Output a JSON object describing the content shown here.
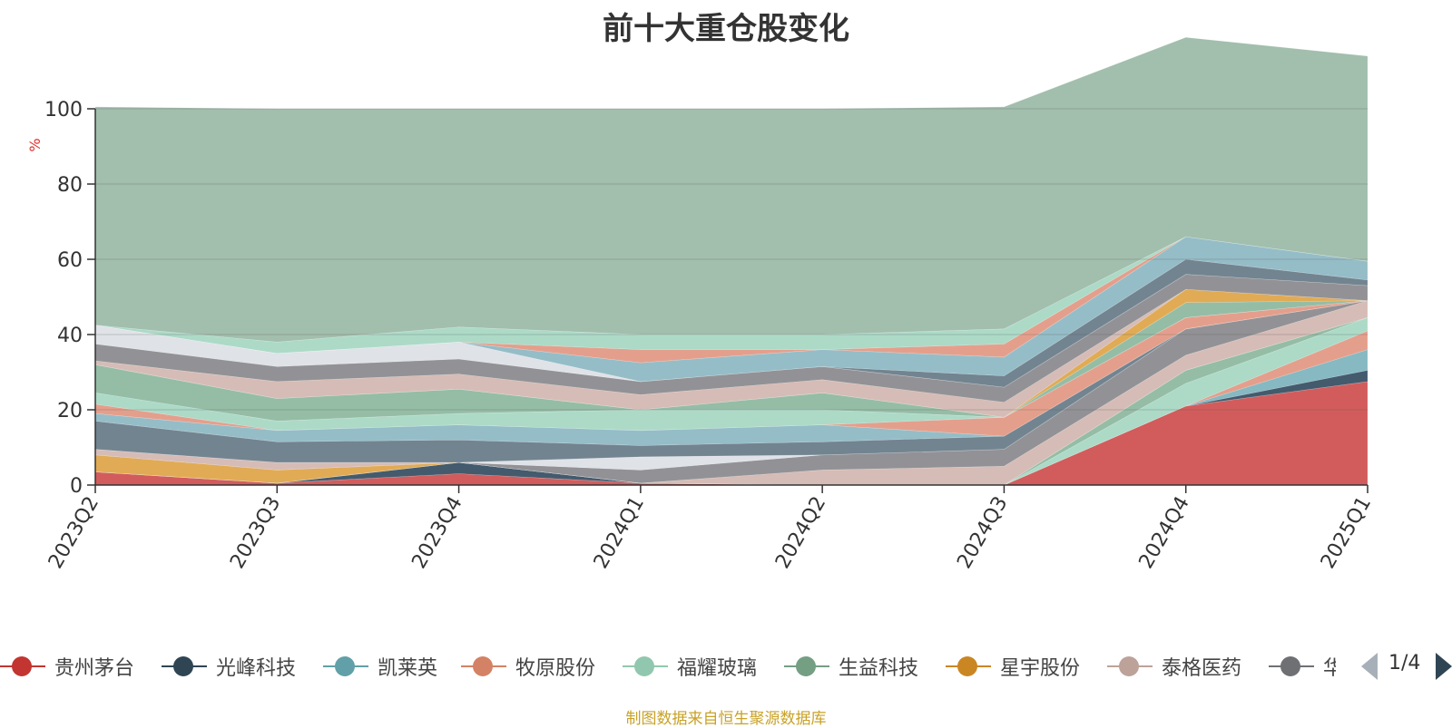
{
  "chart_data": {
    "type": "area",
    "title": "前十大重仓股变化",
    "ylabel": "%",
    "ylim": [
      0,
      100
    ],
    "yticks": [
      0,
      20,
      40,
      60,
      80,
      100
    ],
    "grid": true,
    "categories": [
      "2023Q2",
      "2023Q3",
      "2023Q4",
      "2024Q1",
      "2024Q2",
      "2024Q3",
      "2024Q4",
      "2025Q1"
    ],
    "series": [
      {
        "name": "贵州茅台",
        "color": "#d05353",
        "values": [
          3.5,
          0.5,
          3.0,
          0.5,
          0,
          0,
          21,
          27.5
        ]
      },
      {
        "name": "光峰科技",
        "color": "#3a5266",
        "values": [
          0,
          0,
          3.0,
          0,
          0,
          0,
          0,
          3.0
        ]
      },
      {
        "name": "凯莱英",
        "color": "#7fb5bf",
        "values": [
          0,
          0,
          0,
          0,
          0,
          0,
          0,
          5.5
        ]
      },
      {
        "name": "牧原股份",
        "color": "#e39a86",
        "values": [
          0,
          0,
          0,
          0,
          0,
          0,
          0,
          5.0
        ]
      },
      {
        "name": "福耀玻璃",
        "color": "#a8d8c4",
        "values": [
          0,
          0,
          0,
          0,
          0,
          0,
          6.0,
          3.5
        ]
      },
      {
        "name": "生益科技",
        "color": "#8fb9a1",
        "values": [
          0,
          0,
          0,
          0,
          0,
          0,
          3.5,
          0
        ]
      },
      {
        "name": "星宇股份",
        "color": "#dfa64c",
        "values": [
          4.5,
          3.5,
          0,
          0,
          0,
          0,
          0,
          0
        ]
      },
      {
        "name": "泰格医药",
        "color": "#d4b8b2",
        "values": [
          1.5,
          2.0,
          0,
          0,
          4.0,
          5.0,
          4.0,
          4.5
        ]
      },
      {
        "name": "华",
        "color": "#8c8c90",
        "values": [
          0,
          0,
          0,
          3.5,
          4.0,
          4.5,
          7.0,
          0
        ]
      },
      {
        "name": "",
        "color": "#dde0e6",
        "values": [
          0,
          0,
          0,
          3.5,
          0,
          0,
          0,
          0
        ]
      },
      {
        "name": "",
        "color": "#6a7d8a",
        "values": [
          7.5,
          5.5,
          6.0,
          3.0,
          3.5,
          3.5,
          0,
          0
        ]
      },
      {
        "name": "",
        "color": "#8fb9c4",
        "values": [
          2.0,
          3.0,
          4.0,
          4.0,
          4.5,
          0,
          0,
          0
        ]
      },
      {
        "name": "",
        "color": "#e39a86",
        "values": [
          2.5,
          0,
          0,
          0,
          0,
          5.0,
          3.0,
          0
        ]
      },
      {
        "name": "",
        "color": "#a8d8c4",
        "values": [
          3.0,
          2.5,
          3.0,
          5.5,
          4.0,
          0,
          0,
          0
        ]
      },
      {
        "name": "",
        "color": "#8fb9a1",
        "values": [
          7.5,
          6.0,
          6.5,
          0,
          4.5,
          0,
          4.0,
          0
        ]
      },
      {
        "name": "",
        "color": "#dfa64c",
        "values": [
          0,
          0,
          0,
          0,
          0,
          0,
          3.5,
          0
        ]
      },
      {
        "name": "",
        "color": "#d4b8b2",
        "values": [
          1.0,
          4.5,
          4.0,
          4.0,
          3.5,
          4.0,
          0,
          0
        ]
      },
      {
        "name": "",
        "color": "#8c8c90",
        "values": [
          4.5,
          4.0,
          4.0,
          3.5,
          3.5,
          4.0,
          4.0,
          4.0
        ]
      },
      {
        "name": "",
        "color": "#dde0e6",
        "values": [
          5.0,
          3.5,
          4.5,
          0,
          0,
          0,
          0,
          0
        ]
      },
      {
        "name": "",
        "color": "#6a7d8a",
        "values": [
          0,
          0,
          0,
          0,
          0,
          3.0,
          4.0,
          1.5
        ]
      },
      {
        "name": "",
        "color": "#8fb9c4",
        "values": [
          0,
          0,
          0,
          5.0,
          4.5,
          5.0,
          6.0,
          5.0
        ]
      },
      {
        "name": "",
        "color": "#e39a86",
        "values": [
          0,
          0,
          0,
          3.5,
          0,
          3.5,
          0,
          0
        ]
      },
      {
        "name": "",
        "color": "#a8d8c4",
        "values": [
          0,
          3.0,
          4.0,
          4.0,
          4.0,
          4.0,
          0,
          0
        ]
      },
      {
        "name": "",
        "color": "#9dbba9",
        "values": [
          58.0,
          62.0,
          58.0,
          60.0,
          60.0,
          59.0,
          53.0,
          54.5
        ]
      }
    ]
  },
  "legend": {
    "items": [
      {
        "label": "贵州茅台",
        "color": "#c23531"
      },
      {
        "label": "光峰科技",
        "color": "#2f4554"
      },
      {
        "label": "凯莱英",
        "color": "#61a0a8"
      },
      {
        "label": "牧原股份",
        "color": "#d48265"
      },
      {
        "label": "福耀玻璃",
        "color": "#91c7ae"
      },
      {
        "label": "生益科技",
        "color": "#749f83"
      },
      {
        "label": "星宇股份",
        "color": "#ca8622"
      },
      {
        "label": "泰格医药",
        "color": "#bda29a"
      },
      {
        "label": "华",
        "color": "#6e7074"
      }
    ],
    "page_indicator": "1/4"
  },
  "footer": {
    "note": "制图数据来自恒生聚源数据库"
  }
}
